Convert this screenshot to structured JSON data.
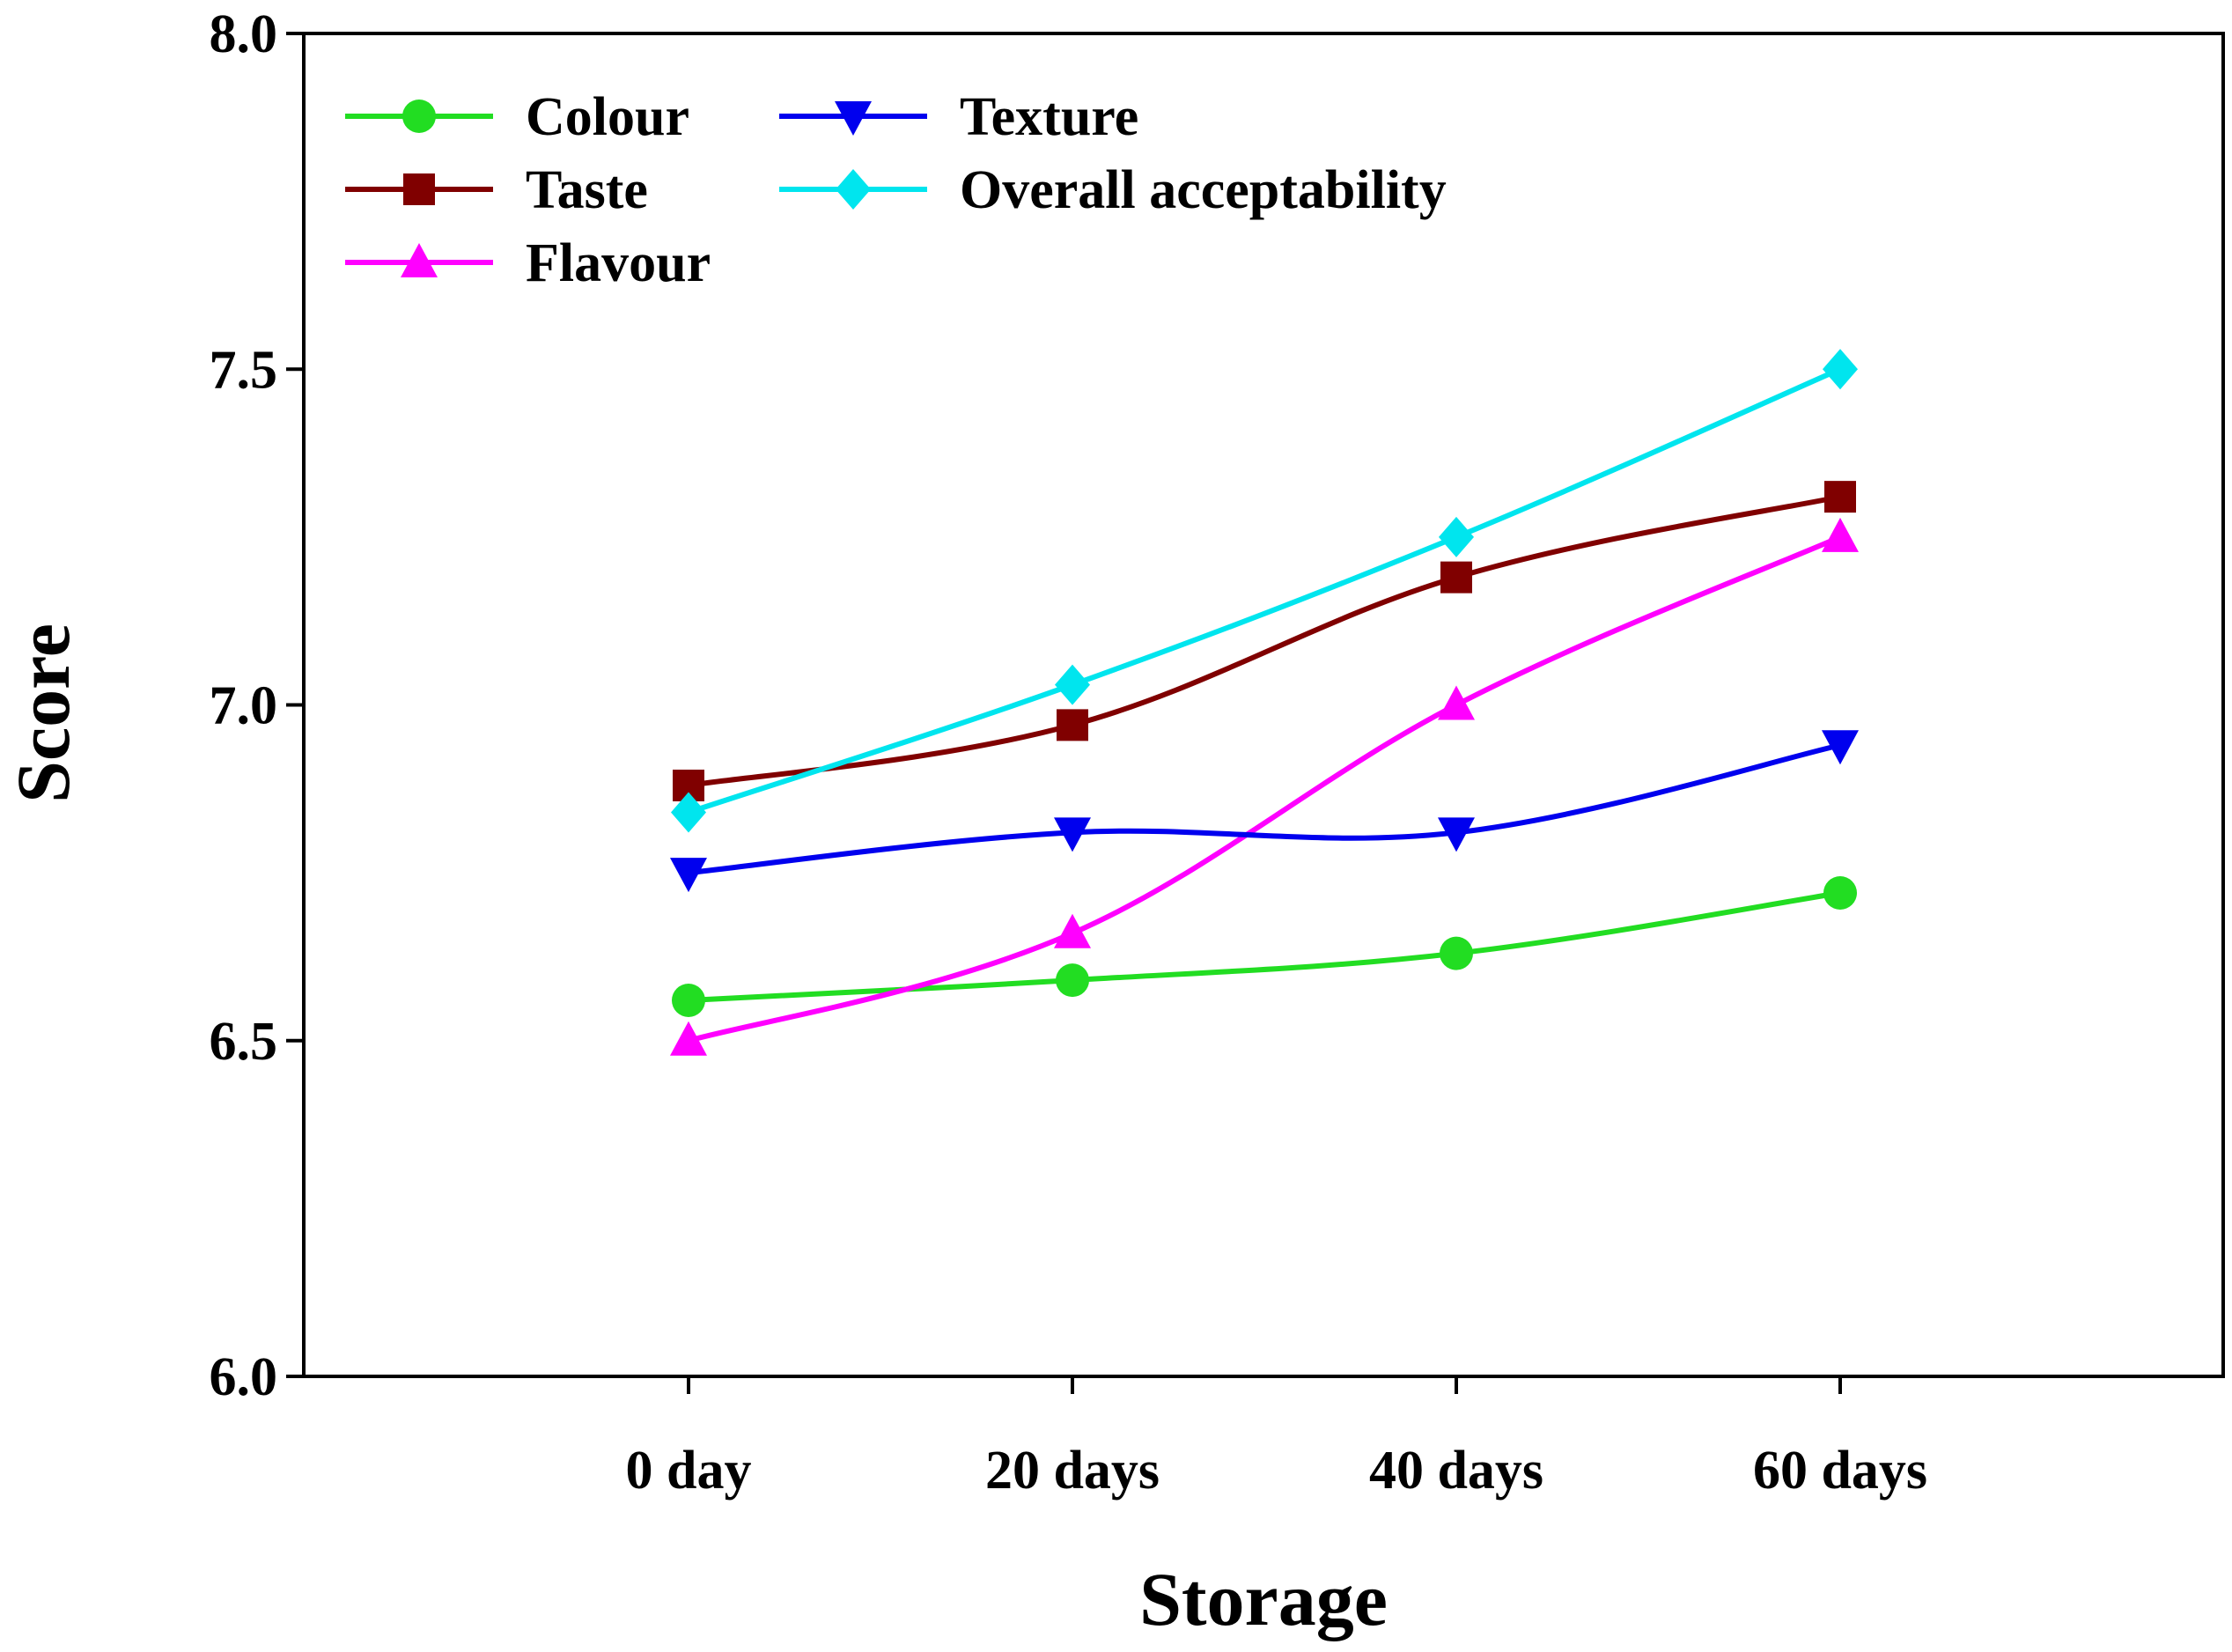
{
  "chart_data": {
    "type": "line",
    "title": "",
    "xlabel": "Storage",
    "ylabel": "Score",
    "categories": [
      "0 day",
      "20 days",
      "40 days",
      "60 days"
    ],
    "ylim": [
      6.0,
      8.0
    ],
    "yticks": [
      "6.0",
      "6.5",
      "7.0",
      "7.5",
      "8.0"
    ],
    "ytick_values": [
      6.0,
      6.5,
      7.0,
      7.5,
      8.0
    ],
    "grid": false,
    "legend_position": "top-left",
    "series": [
      {
        "name": "Colour",
        "color": "#22dd22",
        "marker": "circle",
        "values": [
          6.56,
          6.59,
          6.63,
          6.72
        ]
      },
      {
        "name": "Taste",
        "color": "#800000",
        "marker": "square",
        "values": [
          6.88,
          6.97,
          7.19,
          7.31
        ]
      },
      {
        "name": "Flavour",
        "color": "#ff00ff",
        "marker": "triangle-up",
        "values": [
          6.5,
          6.66,
          7.0,
          7.25
        ]
      },
      {
        "name": "Texture",
        "color": "#0000ee",
        "marker": "triangle-down",
        "values": [
          6.75,
          6.81,
          6.81,
          6.94
        ]
      },
      {
        "name": "Overall acceptability",
        "color": "#00e5ee",
        "marker": "diamond",
        "values": [
          6.84,
          7.03,
          7.25,
          7.5
        ]
      }
    ]
  }
}
